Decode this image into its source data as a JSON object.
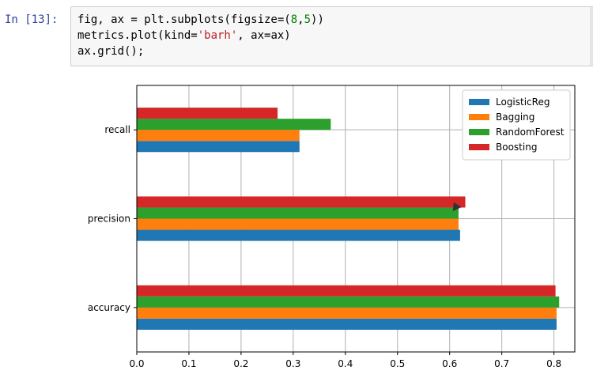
{
  "cell": {
    "prompt": "In [13]:",
    "code_lines": [
      "fig, ax = plt.subplots(figsize=(8,5))",
      "metrics.plot(kind='barh', ax=ax)",
      "ax.grid();"
    ]
  },
  "chart_data": {
    "type": "bar",
    "orientation": "horizontal",
    "categories": [
      "accuracy",
      "precision",
      "recall"
    ],
    "series": [
      {
        "name": "LogisticReg",
        "color": "#1f77b4",
        "values": [
          0.805,
          0.62,
          0.312
        ]
      },
      {
        "name": "Bagging",
        "color": "#ff7f0e",
        "values": [
          0.805,
          0.617,
          0.312
        ]
      },
      {
        "name": "RandomForest",
        "color": "#2ca02c",
        "values": [
          0.81,
          0.617,
          0.372
        ]
      },
      {
        "name": "Boosting",
        "color": "#d62728",
        "values": [
          0.803,
          0.63,
          0.27
        ]
      }
    ],
    "xlim": [
      0,
      0.84
    ],
    "xticks": [
      "0.0",
      "0.1",
      "0.2",
      "0.3",
      "0.4",
      "0.5",
      "0.6",
      "0.7",
      "0.8"
    ],
    "grid": true,
    "legend_position": "top-right",
    "xlabel": "",
    "ylabel": ""
  }
}
